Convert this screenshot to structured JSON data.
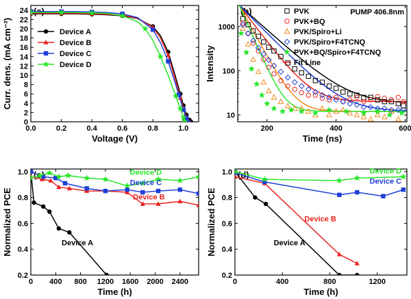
{
  "chart_data": [
    {
      "panel": "(a)",
      "type": "line",
      "xlabel": "Voltage (V)",
      "ylabel": "Curr. dens. (mA cm⁻²)",
      "xlim": [
        0.0,
        1.1
      ],
      "ylim": [
        0,
        25
      ],
      "xticks": [
        0.0,
        0.2,
        0.4,
        0.6,
        0.8,
        1.0
      ],
      "xtick_labels": [
        "0.0",
        "0.2",
        "0.4",
        "0.6",
        "0.8",
        "1.0"
      ],
      "yticks": [
        0,
        2,
        4,
        6,
        8,
        10,
        12,
        14,
        16,
        18,
        20,
        22,
        24
      ],
      "ytick_labels": [
        "0",
        "2",
        "4",
        "6",
        "8",
        "10",
        "12",
        "14",
        "16",
        "18",
        "20",
        "22",
        "24"
      ],
      "legend_position": "bottom-left",
      "series": [
        {
          "name": "Device A",
          "color": "#000000",
          "marker": "circle",
          "x": [
            0.0,
            0.1,
            0.2,
            0.3,
            0.4,
            0.5,
            0.6,
            0.7,
            0.8,
            0.85,
            0.9,
            0.95,
            0.98,
            1.0,
            1.02,
            1.04,
            1.05
          ],
          "y": [
            23.2,
            23.2,
            23.2,
            23.2,
            23.1,
            23.0,
            22.8,
            22.2,
            20.5,
            18.5,
            15.0,
            9.5,
            6.0,
            3.5,
            1.5,
            0.4,
            0.0
          ]
        },
        {
          "name": "Device B",
          "color": "#e8231e",
          "marker": "triangle",
          "x": [
            0.0,
            0.1,
            0.2,
            0.3,
            0.4,
            0.5,
            0.6,
            0.7,
            0.8,
            0.85,
            0.9,
            0.95,
            0.98,
            1.0,
            1.02,
            1.04
          ],
          "y": [
            23.3,
            23.3,
            23.3,
            23.3,
            23.2,
            23.1,
            22.9,
            22.3,
            20.3,
            18.0,
            14.3,
            8.8,
            5.2,
            2.9,
            1.0,
            0.0
          ]
        },
        {
          "name": "Device C",
          "color": "#1f3fd6",
          "marker": "square",
          "x": [
            0.0,
            0.1,
            0.2,
            0.3,
            0.4,
            0.5,
            0.6,
            0.7,
            0.8,
            0.85,
            0.9,
            0.94,
            0.97,
            1.0,
            1.02,
            1.03
          ],
          "y": [
            23.7,
            23.7,
            23.7,
            23.7,
            23.6,
            23.5,
            23.2,
            22.4,
            19.8,
            17.0,
            13.0,
            9.0,
            5.8,
            2.6,
            0.8,
            0.0
          ]
        },
        {
          "name": "Device D",
          "color": "#27e627",
          "marker": "star",
          "x": [
            0.0,
            0.1,
            0.2,
            0.3,
            0.4,
            0.5,
            0.6,
            0.7,
            0.75,
            0.8,
            0.85,
            0.9,
            0.95,
            0.98,
            1.0,
            1.01
          ],
          "y": [
            23.5,
            23.5,
            23.5,
            23.5,
            23.4,
            23.3,
            22.8,
            21.5,
            20.0,
            17.5,
            14.0,
            10.0,
            5.5,
            2.8,
            0.9,
            0.0
          ]
        }
      ]
    },
    {
      "panel": "(b)",
      "type": "scatter",
      "xlabel": "Time (ns)",
      "ylabel": "Intensity",
      "xlim": [
        115,
        605
      ],
      "ylim": [
        7,
        3000
      ],
      "yscale": "log",
      "xticks": [
        200,
        400,
        600
      ],
      "xtick_labels": [
        "200",
        "400",
        "600"
      ],
      "yticks": [
        10,
        100,
        1000
      ],
      "ytick_labels": [
        "10",
        "100",
        "1000"
      ],
      "annotation": "PUMP 406.8nm",
      "legend_position": "top-right",
      "fit_label": "Fit Line",
      "fit_color": "#e8231e",
      "series": [
        {
          "name": "PVK",
          "color": "#000000",
          "marker": "open-square",
          "fit": {
            "a": 3000,
            "tau": 62,
            "c": 18
          },
          "x": [
            130,
            145,
            160,
            175,
            190,
            205,
            220,
            240,
            260,
            280,
            300,
            320,
            340,
            360,
            380,
            400,
            420,
            440,
            460,
            480,
            500,
            520,
            540,
            560,
            580,
            595
          ],
          "y": [
            1500,
            1100,
            800,
            600,
            450,
            340,
            280,
            210,
            150,
            110,
            90,
            75,
            60,
            55,
            45,
            40,
            33,
            30,
            28,
            25,
            25,
            22,
            20,
            20,
            18,
            16
          ]
        },
        {
          "name": "PVK+BQ",
          "color": "#e8231e",
          "marker": "open-circle",
          "fit": {
            "a": 3000,
            "tau": 42,
            "c": 20
          },
          "x": [
            130,
            145,
            160,
            175,
            190,
            205,
            220,
            240,
            260,
            280,
            300,
            320,
            340,
            360,
            380,
            400,
            420,
            440,
            460,
            480,
            500,
            520,
            540,
            560,
            580,
            595
          ],
          "y": [
            1200,
            700,
            420,
            280,
            180,
            120,
            85,
            60,
            45,
            38,
            32,
            28,
            28,
            24,
            22,
            25,
            20,
            22,
            25,
            20,
            22,
            26,
            24,
            22,
            25,
            20
          ]
        },
        {
          "name": "PVK/Spiro+Li",
          "color": "#f08a1c",
          "marker": "open-triangle",
          "fit": {
            "a": 3000,
            "tau": 30,
            "c": 12
          },
          "x": [
            130,
            145,
            160,
            175,
            190,
            205,
            220,
            240,
            260,
            280,
            300,
            320,
            340,
            360,
            380,
            400,
            420,
            440,
            460,
            480,
            500,
            520,
            540,
            560,
            580
          ],
          "y": [
            900,
            400,
            180,
            95,
            55,
            35,
            25,
            20,
            16,
            14,
            14,
            12,
            10,
            14,
            10,
            12,
            13,
            11,
            10,
            9,
            8,
            10,
            9,
            12,
            8
          ]
        },
        {
          "name": "PVK/Spiro+F4TCNQ",
          "color": "#1f3fd6",
          "marker": "open-diamond",
          "fit": {
            "a": 3000,
            "tau": 55,
            "c": 12
          },
          "x": [
            130,
            145,
            160,
            175,
            190,
            205,
            220,
            240,
            260,
            280,
            300,
            320,
            340,
            360,
            380,
            400,
            420,
            440,
            460,
            480,
            500,
            520,
            540,
            560,
            580,
            595
          ],
          "y": [
            1100,
            700,
            480,
            330,
            240,
            175,
            130,
            95,
            70,
            55,
            45,
            38,
            33,
            28,
            25,
            22,
            20,
            18,
            17,
            15,
            15,
            14,
            14,
            13,
            13,
            13
          ]
        },
        {
          "name": "PVK+BQ/Spiro+F4TCNQ",
          "color": "#27e627",
          "marker": "star",
          "fit": {
            "a": 3000,
            "tau": 24,
            "c": 12
          },
          "x": [
            125,
            140,
            155,
            170,
            185,
            200,
            220,
            245,
            270,
            300,
            340,
            380,
            430,
            480,
            520,
            555,
            590
          ],
          "y": [
            700,
            260,
            110,
            50,
            28,
            18,
            14,
            12,
            13,
            12,
            11,
            13,
            12,
            11,
            12,
            10,
            11
          ]
        }
      ]
    },
    {
      "panel": "(c)",
      "type": "line",
      "xlabel": "Time (h)",
      "ylabel": "Normalized PCE",
      "xlim": [
        0,
        2700
      ],
      "ylim": [
        0.2,
        1.02
      ],
      "xticks": [
        0,
        400,
        800,
        1200,
        1600,
        2000,
        2400
      ],
      "xtick_labels": [
        "0",
        "400",
        "800",
        "1200",
        "1600",
        "2000",
        "2400"
      ],
      "yticks": [
        0.2,
        0.4,
        0.6,
        0.8,
        1.0
      ],
      "ytick_labels": [
        "0.2",
        "0.4",
        "0.6",
        "0.8",
        "1.0"
      ],
      "labels": [
        {
          "text": "Device D",
          "color": "#27e627",
          "x": 1850,
          "y": 0.975
        },
        {
          "text": "Device C",
          "color": "#1f3fd6",
          "x": 1850,
          "y": 0.895
        },
        {
          "text": "Device B",
          "color": "#e8231e",
          "x": 1900,
          "y": 0.785
        },
        {
          "text": "Device A",
          "color": "#000000",
          "x": 750,
          "y": 0.43
        }
      ],
      "series": [
        {
          "name": "Device A",
          "color": "#000000",
          "marker": "circle",
          "x": [
            0,
            50,
            200,
            300,
            450,
            620,
            1220
          ],
          "y": [
            1.0,
            0.76,
            0.73,
            0.69,
            0.56,
            0.53,
            0.2
          ]
        },
        {
          "name": "Device B",
          "color": "#e8231e",
          "marker": "triangle",
          "x": [
            0,
            180,
            320,
            450,
            620,
            900,
            1200,
            1550,
            1800,
            2050,
            2400,
            2700
          ],
          "y": [
            0.96,
            0.94,
            0.93,
            0.88,
            0.87,
            0.85,
            0.85,
            0.84,
            0.75,
            0.75,
            0.77,
            0.74
          ]
        },
        {
          "name": "Device C",
          "color": "#1f3fd6",
          "marker": "square",
          "x": [
            0,
            200,
            400,
            550,
            900,
            1200,
            1550,
            1800,
            2050,
            2400,
            2700
          ],
          "y": [
            1.0,
            0.96,
            0.95,
            0.91,
            0.87,
            0.85,
            0.86,
            0.84,
            0.85,
            0.86,
            0.83
          ]
        },
        {
          "name": "Device D",
          "color": "#27e627",
          "marker": "star",
          "x": [
            0,
            150,
            300,
            450,
            600,
            900,
            1200,
            1550,
            1800,
            2050,
            2400,
            2700
          ],
          "y": [
            0.95,
            0.97,
            0.99,
            0.96,
            0.97,
            0.95,
            0.94,
            0.89,
            0.91,
            0.94,
            0.93,
            0.96
          ]
        }
      ]
    },
    {
      "panel": "(d)",
      "type": "line",
      "xlabel": "Time (h)",
      "ylabel": "Normalized PCE",
      "xlim": [
        0,
        1450
      ],
      "ylim": [
        0.2,
        1.02
      ],
      "xticks": [
        0,
        400,
        800,
        1200
      ],
      "xtick_labels": [
        "0",
        "400",
        "800",
        "1200"
      ],
      "yticks": [
        0.2,
        0.4,
        0.6,
        0.8,
        1.0
      ],
      "ytick_labels": [
        "0.2",
        "0.4",
        "0.6",
        "0.8",
        "1.0"
      ],
      "labels": [
        {
          "text": "Device D",
          "color": "#27e627",
          "x": 1270,
          "y": 0.985
        },
        {
          "text": "Device C",
          "color": "#1f3fd6",
          "x": 1270,
          "y": 0.905
        },
        {
          "text": "Device B",
          "color": "#e8231e",
          "x": 720,
          "y": 0.615
        },
        {
          "text": "Device A",
          "color": "#000000",
          "x": 460,
          "y": 0.43
        }
      ],
      "series": [
        {
          "name": "Device A",
          "color": "#000000",
          "marker": "circle",
          "x": [
            0,
            170,
            260,
            880,
            1030
          ],
          "y": [
            1.0,
            0.8,
            0.75,
            0.2,
            0.2
          ]
        },
        {
          "name": "Device B",
          "color": "#e8231e",
          "marker": "triangle",
          "x": [
            0,
            250,
            880,
            1030
          ],
          "y": [
            0.96,
            0.91,
            0.36,
            0.29
          ]
        },
        {
          "name": "Device C",
          "color": "#1f3fd6",
          "marker": "square",
          "x": [
            0,
            250,
            880,
            1030,
            1250,
            1420
          ],
          "y": [
            0.99,
            0.92,
            0.82,
            0.84,
            0.81,
            0.86
          ]
        },
        {
          "name": "Device D",
          "color": "#27e627",
          "marker": "star",
          "x": [
            0,
            250,
            880,
            1030,
            1420
          ],
          "y": [
            1.0,
            0.94,
            0.93,
            0.95,
            0.96
          ]
        }
      ]
    }
  ]
}
